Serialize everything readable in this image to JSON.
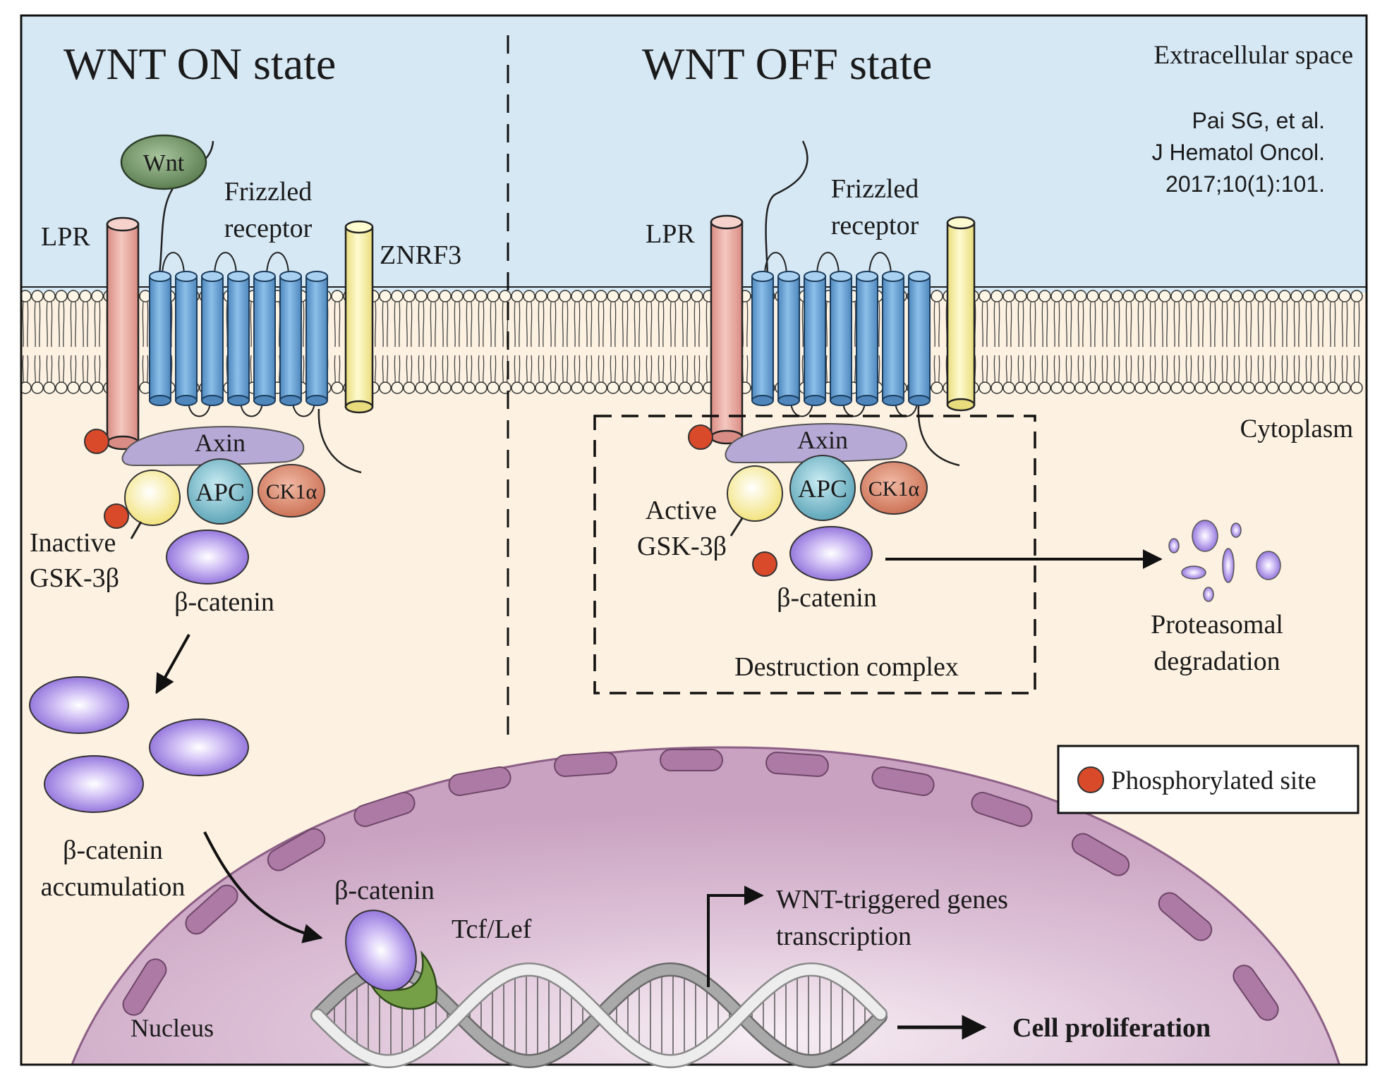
{
  "titles": {
    "on": "WNT ON state",
    "off": "WNT OFF state"
  },
  "regions": {
    "extracellular": "Extracellular space",
    "cytoplasm": "Cytoplasm",
    "nucleus": "Nucleus"
  },
  "citation": {
    "line1": "Pai SG, et al.",
    "line2": "J Hematol Oncol.",
    "line3": "2017;10(1):101."
  },
  "on": {
    "wnt": "Wnt",
    "frizzled1": "Frizzled",
    "frizzled2": "receptor",
    "lpr": "LPR",
    "znrf3": "ZNRF3",
    "axin": "Axin",
    "apc": "APC",
    "ck1a": "CK1α",
    "gsk1": "Inactive",
    "gsk2": "GSK-3β",
    "bcat": "β-catenin",
    "accum1": "β-catenin",
    "accum2": "accumulation"
  },
  "off": {
    "frizzled1": "Frizzled",
    "frizzled2": "receptor",
    "lpr": "LPR",
    "axin": "Axin",
    "apc": "APC",
    "ck1a": "CK1α",
    "gsk1": "Active",
    "gsk2": "GSK-3β",
    "bcat": "β-catenin",
    "destruction": "Destruction complex",
    "proteasome1": "Proteasomal",
    "proteasome2": "degradation"
  },
  "nucleus": {
    "bcat": "β-catenin",
    "tcf": "Tcf/Lef",
    "genes1": "WNT-triggered genes",
    "genes2": "transcription",
    "proliferation": "Cell proliferation"
  },
  "legend": {
    "label": "Phosphorylated site"
  },
  "colors": {
    "extracellular": "#d6e8f4",
    "cytoplasm": "#fdf1e1",
    "nucleus": "#dcbcd6",
    "nucleusPore": "#ad7aa5",
    "frizzled": "#6ea6d8",
    "lpr": "#e6a8a0",
    "znrf3": "#f6eea3",
    "axin": "#b7a9d6",
    "apc": "#7dbdcd",
    "ck1a": "#d9846a",
    "gsk": "#fbf1a6",
    "bcatenin": "#8c6bd9",
    "wnt": "#6e8e62",
    "tcf": "#76a047",
    "phospho": "#d94a2a"
  }
}
